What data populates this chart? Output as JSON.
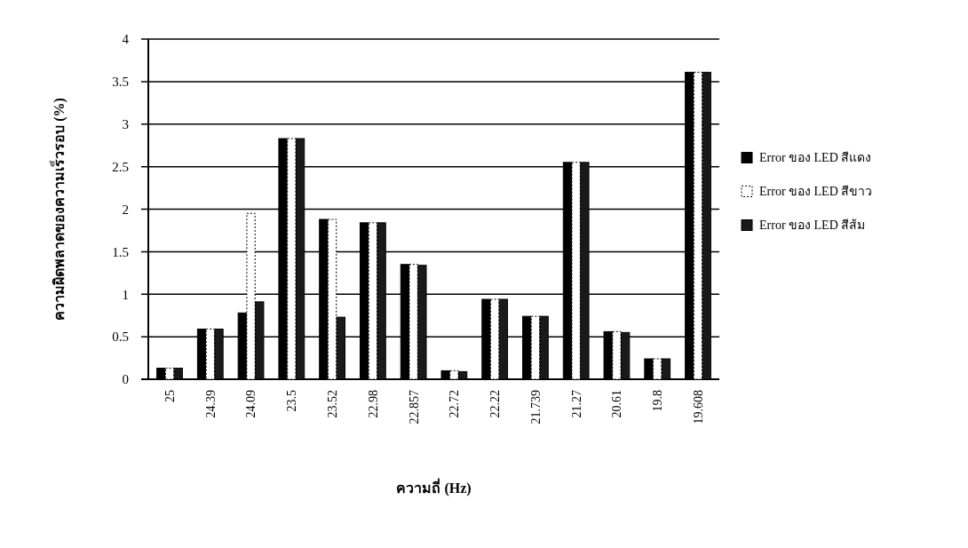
{
  "chart_data": {
    "type": "bar",
    "xlabel": "ความถี่ (Hz)",
    "ylabel": "ความผิดพลาดของความเร็วรอบ (%)",
    "categories": [
      "25",
      "24.39",
      "24.09",
      "23.5",
      "23.52",
      "22.98",
      "22.857",
      "22.72",
      "22.22",
      "21.739",
      "21.27",
      "20.61",
      "19.8",
      "19.608"
    ],
    "series": [
      {
        "name": "Error ของ LED สีแดง",
        "color": "#000000",
        "values": [
          0.13,
          0.59,
          0.78,
          2.83,
          1.88,
          1.84,
          1.35,
          0.1,
          0.94,
          0.74,
          2.55,
          0.56,
          0.24,
          3.61
        ]
      },
      {
        "name": "Error ของ LED สีขาว",
        "color": "#ffffff",
        "values": [
          0.13,
          0.59,
          1.95,
          2.83,
          1.88,
          1.84,
          1.35,
          0.1,
          0.94,
          0.74,
          2.55,
          0.56,
          0.24,
          3.61
        ]
      },
      {
        "name": "Error ของ LED สีส้ม",
        "color": "#1a1a1a",
        "values": [
          0.13,
          0.59,
          0.91,
          2.83,
          0.73,
          1.84,
          1.34,
          0.09,
          0.94,
          0.74,
          2.55,
          0.55,
          0.24,
          3.61
        ]
      }
    ],
    "ylim": [
      0,
      4
    ],
    "yticks": [
      0,
      0.5,
      1,
      1.5,
      2,
      2.5,
      3,
      3.5,
      4
    ],
    "grid": "y",
    "legend": "right"
  }
}
